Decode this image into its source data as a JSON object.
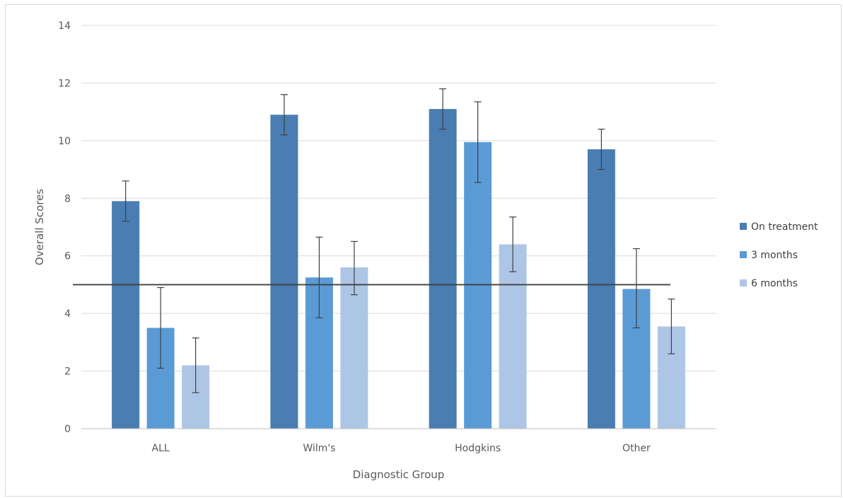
{
  "chart_data": {
    "type": "bar",
    "title": "",
    "xlabel": "Diagnostic Group",
    "ylabel": "Overall Scores",
    "ylim": [
      0,
      14
    ],
    "yticks": [
      0,
      2,
      4,
      6,
      8,
      10,
      12,
      14
    ],
    "grid": true,
    "legend_position": "right",
    "categories": [
      "ALL",
      "Wilm's",
      "Hodgkins",
      "Other"
    ],
    "series": [
      {
        "name": "On treatment",
        "color": "#4a7db1",
        "values": [
          7.9,
          10.9,
          11.1,
          9.7
        ],
        "err_low": [
          7.2,
          10.2,
          10.4,
          9.0
        ],
        "err_high": [
          8.6,
          11.6,
          11.8,
          10.4
        ]
      },
      {
        "name": "3 months",
        "color": "#5b9bd5",
        "values": [
          3.5,
          5.25,
          9.95,
          4.85
        ],
        "err_low": [
          2.1,
          3.85,
          8.55,
          3.5
        ],
        "err_high": [
          4.9,
          6.65,
          11.35,
          6.25
        ]
      },
      {
        "name": "6 months",
        "color": "#aec6e6",
        "values": [
          2.2,
          5.6,
          6.4,
          3.55
        ],
        "err_low": [
          1.25,
          4.65,
          5.45,
          2.6
        ],
        "err_high": [
          3.15,
          6.5,
          7.35,
          4.5
        ]
      }
    ],
    "reference_line": {
      "y": 5.0,
      "color": "#404040"
    }
  }
}
